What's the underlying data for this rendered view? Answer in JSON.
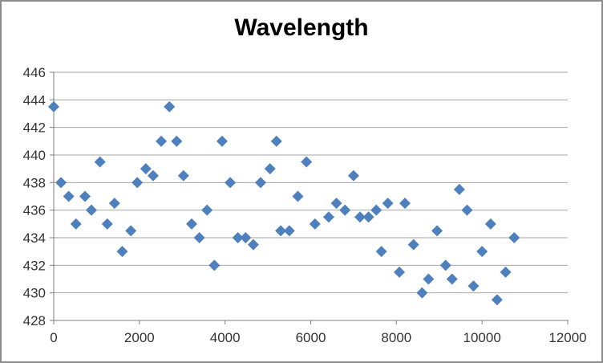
{
  "chart": {
    "title": "Wavelength",
    "title_color": "#000000",
    "marker_color": "#4E80BD",
    "gridline_color": "#A6A6A6",
    "axis_line_color": "#808080",
    "tick_label_color": "#333333",
    "frame_border_color": "#8C8C8C",
    "background_color": "#FFFFFF"
  },
  "chart_data": {
    "type": "scatter",
    "title": "Wavelength",
    "xlabel": "",
    "ylabel": "",
    "xlim": [
      0,
      12000
    ],
    "ylim": [
      428,
      446
    ],
    "x_ticks": [
      0,
      2000,
      4000,
      6000,
      8000,
      10000,
      12000
    ],
    "y_ticks": [
      428,
      430,
      432,
      434,
      436,
      438,
      440,
      442,
      444,
      446
    ],
    "grid": "horizontal",
    "legend_position": "none",
    "marker": "diamond",
    "points": [
      [
        0,
        443.5
      ],
      [
        170,
        438
      ],
      [
        350,
        437
      ],
      [
        520,
        435
      ],
      [
        730,
        437
      ],
      [
        880,
        436
      ],
      [
        1080,
        439.5
      ],
      [
        1250,
        435
      ],
      [
        1420,
        436.5
      ],
      [
        1600,
        433
      ],
      [
        1800,
        434.5
      ],
      [
        1950,
        438
      ],
      [
        2150,
        439
      ],
      [
        2320,
        438.5
      ],
      [
        2510,
        441
      ],
      [
        2700,
        443.5
      ],
      [
        2870,
        441
      ],
      [
        3030,
        438.5
      ],
      [
        3220,
        435
      ],
      [
        3400,
        434
      ],
      [
        3580,
        436
      ],
      [
        3750,
        432
      ],
      [
        3930,
        441
      ],
      [
        4120,
        438
      ],
      [
        4300,
        434
      ],
      [
        4480,
        434
      ],
      [
        4660,
        433.5
      ],
      [
        4830,
        438
      ],
      [
        5050,
        439
      ],
      [
        5200,
        441
      ],
      [
        5300,
        434.5
      ],
      [
        5500,
        434.5
      ],
      [
        5700,
        437
      ],
      [
        5900,
        439.5
      ],
      [
        6100,
        435
      ],
      [
        6420,
        435.5
      ],
      [
        6600,
        436.5
      ],
      [
        6800,
        436
      ],
      [
        7000,
        438.5
      ],
      [
        7150,
        435.5
      ],
      [
        7350,
        435.5
      ],
      [
        7530,
        436
      ],
      [
        7650,
        433
      ],
      [
        7800,
        436.5
      ],
      [
        8070,
        431.5
      ],
      [
        8200,
        436.5
      ],
      [
        8400,
        433.5
      ],
      [
        8600,
        430
      ],
      [
        8750,
        431
      ],
      [
        8950,
        434.5
      ],
      [
        9150,
        432
      ],
      [
        9300,
        431
      ],
      [
        9470,
        437.5
      ],
      [
        9650,
        436
      ],
      [
        9800,
        430.5
      ],
      [
        10000,
        433
      ],
      [
        10200,
        435
      ],
      [
        10350,
        429.5
      ],
      [
        10550,
        431.5
      ],
      [
        10750,
        434
      ]
    ]
  }
}
